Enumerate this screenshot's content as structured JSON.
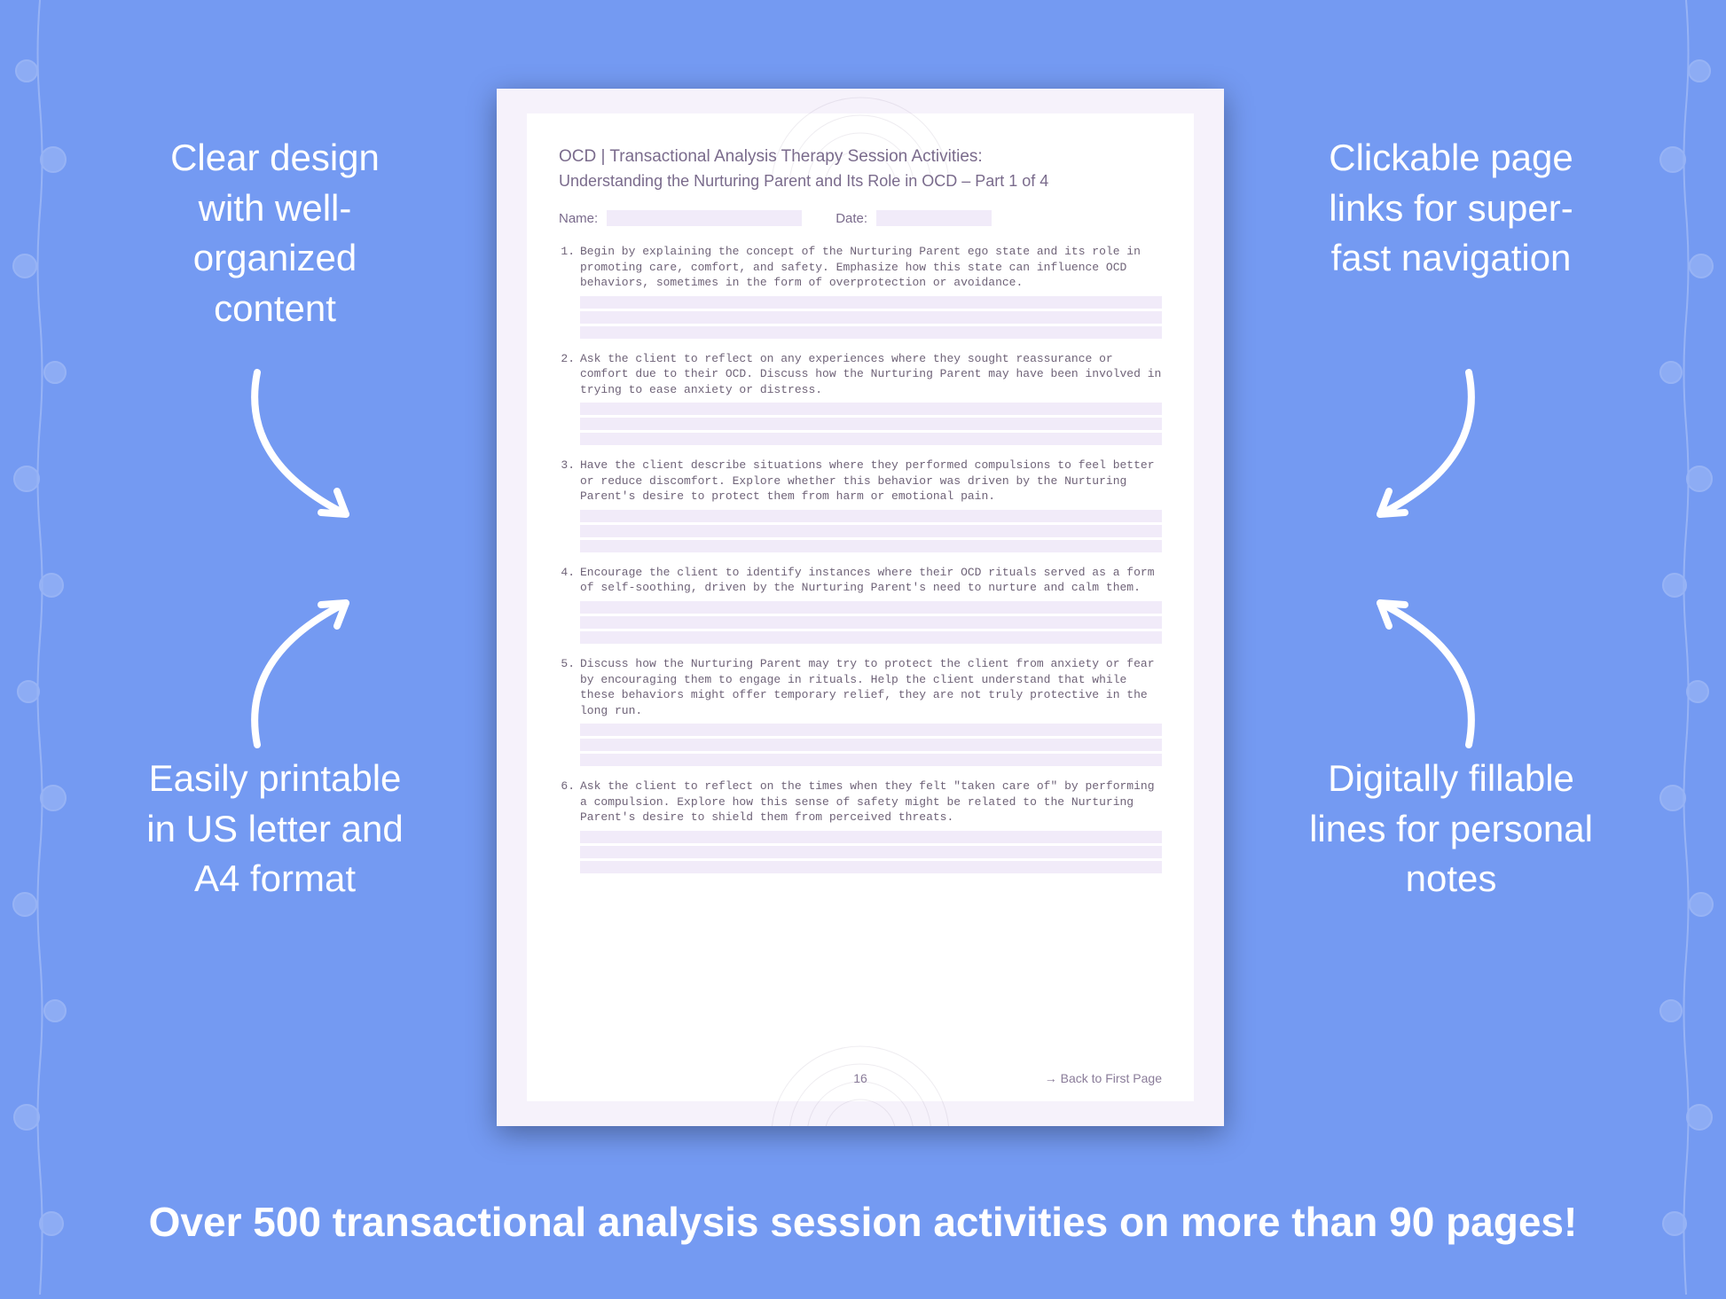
{
  "background_color": "#749af2",
  "callouts": {
    "top_left": "Clear design with well-organized content",
    "top_right": "Clickable page links for super-fast navigation",
    "bottom_left": "Easily printable in US letter and A4 format",
    "bottom_right": "Digitally fillable lines for personal notes"
  },
  "tagline": "Over 500 transactional analysis session activities on more than 90 pages!",
  "document": {
    "title": "OCD | Transactional Analysis Therapy Session Activities:",
    "subtitle": "Understanding the Nurturing Parent and Its Role in OCD  – Part 1 of 4",
    "name_label": "Name:",
    "date_label": "Date:",
    "items": [
      "Begin by explaining the concept of the Nurturing Parent ego state and its role in promoting care, comfort, and safety. Emphasize how this state can influence OCD behaviors, sometimes in the form of overprotection or avoidance.",
      "Ask the client to reflect on any experiences where they sought reassurance or comfort due to their OCD. Discuss how the Nurturing Parent may have been involved in trying to ease anxiety or distress.",
      "Have the client describe situations where they performed compulsions to feel better or reduce discomfort. Explore whether this behavior was driven by the Nurturing Parent's desire to protect them from harm or emotional pain.",
      "Encourage the client to identify instances where their OCD rituals served as a form of self-soothing, driven by the Nurturing Parent's need to nurture and calm them.",
      "Discuss how the Nurturing Parent may try to protect the client from anxiety or fear by encouraging them to engage in rituals. Help the client understand that while these behaviors might offer temporary relief, they are not truly protective in the long run.",
      "Ask the client to reflect on the times when they felt \"taken care of\" by performing a compulsion. Explore how this sense of safety might be related to the Nurturing Parent's desire to shield them from perceived threats."
    ],
    "page_number": "16",
    "back_link": "→ Back to First Page",
    "colors": {
      "page_bg": "#f6f2fb",
      "inner_bg": "#ffffff",
      "fill_bg": "#f1ebf9",
      "heading_color": "#7a6b8c",
      "body_color": "#6f6378"
    },
    "fill_lines_per_item": 3
  },
  "style": {
    "callout_color": "#ffffff",
    "callout_fontsize": 42,
    "tagline_fontsize": 46,
    "arrow_color": "#ffffff",
    "arrow_stroke_width": 8
  }
}
